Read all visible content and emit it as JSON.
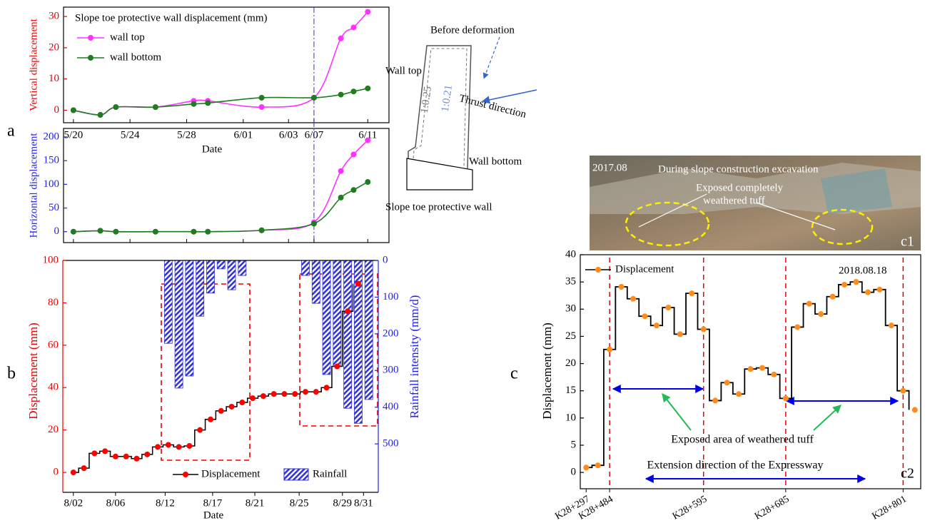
{
  "panel_labels": [
    "a",
    "b",
    "c"
  ],
  "diagram": {
    "before": "Before deformation",
    "wall_top": "Wall top",
    "ratio_before": "1:0.25",
    "ratio_after": "1:0.21",
    "thrust": "Thrust direction",
    "wall_bottom": "Wall bottom",
    "caption": "Slope toe protective wall"
  },
  "photo": {
    "date": "2017.08",
    "title": "During slope construction excavation",
    "note_1": "Exposed completely",
    "note_2": "weathered tuff",
    "tag": "c1"
  },
  "chart_data": [
    {
      "type": "line",
      "title": "Slope toe protective wall displacement (mm)",
      "ylabel": "Vertical displacement",
      "xlabel": "Date",
      "x": [
        0,
        1.9,
        3,
        5.8,
        8.5,
        9.5,
        13.3,
        17,
        18.9,
        19.8,
        20.8
      ],
      "xlim": [
        -0.7,
        22.3
      ],
      "xticks": [
        {
          "value": 0,
          "label": "5/20"
        },
        {
          "value": 4,
          "label": "5/24"
        },
        {
          "value": 8,
          "label": "5/28"
        },
        {
          "value": 12,
          "label": "6/01"
        },
        {
          "value": 15.2,
          "label": "6/03"
        },
        {
          "value": 17,
          "label": "6/07"
        },
        {
          "value": 20.8,
          "label": "6/11"
        }
      ],
      "ylim": [
        -4,
        33
      ],
      "yticks": [
        0,
        10,
        20,
        30
      ],
      "series": [
        {
          "name": "wall top",
          "color": "#ff33ff",
          "values": [
            0,
            -1.5,
            1,
            1,
            3,
            3,
            1,
            4,
            23,
            26.5,
            31.5
          ]
        },
        {
          "name": "wall bottom",
          "color": "#1e7d1e",
          "values": [
            0,
            -1.5,
            1,
            1,
            2,
            2.3,
            4,
            4,
            5,
            6,
            7
          ]
        }
      ]
    },
    {
      "type": "line",
      "ylabel": "Horizontal displacement",
      "ylim": [
        -23,
        218
      ],
      "yticks": [
        0,
        50,
        100,
        150,
        200
      ],
      "series": [
        {
          "color": "#ff33ff",
          "values": [
            0,
            2,
            0,
            0,
            0,
            0,
            3,
            20,
            128,
            163,
            193
          ]
        },
        {
          "color": "#1e7d1e",
          "values": [
            0,
            2,
            0,
            0,
            0,
            0,
            3,
            17,
            72,
            88,
            105
          ]
        }
      ]
    },
    {
      "type": "step-bar",
      "xlabel": "Date",
      "ylabel": "Displacement (mm)",
      "y2label": "Rainfall intensity (mm/d)",
      "xlim": [
        -1,
        28.9
      ],
      "xticks": [
        {
          "value": 0,
          "label": "8/02"
        },
        {
          "value": 4,
          "label": "8/06"
        },
        {
          "value": 8.7,
          "label": "8/12"
        },
        {
          "value": 13.2,
          "label": "8/17"
        },
        {
          "value": 17.2,
          "label": "8/21"
        },
        {
          "value": 21.4,
          "label": "8/25"
        },
        {
          "value": 25.5,
          "label": "8/29"
        },
        {
          "value": 27.5,
          "label": "8/31"
        }
      ],
      "ylim": [
        -9.4,
        100
      ],
      "yticks": [
        0,
        20,
        40,
        60,
        80,
        100
      ],
      "y2lim": [
        0,
        632
      ],
      "y2ticks": [
        0,
        100,
        200,
        300,
        400,
        500
      ],
      "y2_inverted": true,
      "series": [
        {
          "name": "Displacement",
          "color": "#ff0000",
          "x": [
            0,
            1,
            2,
            3,
            4,
            5,
            6,
            7,
            8,
            9,
            10,
            11,
            12,
            13,
            14,
            15,
            16,
            17,
            18,
            19,
            20,
            21,
            22,
            23,
            24,
            25,
            26,
            27
          ],
          "values": [
            0,
            2,
            9,
            10,
            7.5,
            7.5,
            6.5,
            8.5,
            12,
            13,
            12,
            12.5,
            20,
            25,
            29,
            31,
            33,
            35,
            36,
            37,
            37,
            37,
            38,
            38,
            40,
            50,
            76,
            89
          ]
        },
        {
          "name": "Rainfall",
          "color": "#3333cc",
          "axis": "y2",
          "x": [
            9,
            10,
            11,
            12,
            13,
            14,
            15,
            16,
            22,
            23,
            24,
            25,
            26,
            27,
            28
          ],
          "values": [
            226,
            348,
            315,
            152,
            89,
            23,
            80,
            41,
            41,
            117,
            311,
            286,
            403,
            444,
            379
          ]
        }
      ]
    },
    {
      "type": "step",
      "ylabel": "Displacement (mm)",
      "categories": [
        "K28+297",
        null,
        "K28+484",
        null,
        null,
        null,
        null,
        null,
        null,
        null,
        "K28+595",
        null,
        null,
        null,
        null,
        null,
        null,
        "K28+685",
        null,
        null,
        null,
        null,
        null,
        null,
        null,
        null,
        null,
        "K28+801",
        null
      ],
      "ylim": [
        -3,
        40
      ],
      "yticks": [
        0,
        5,
        10,
        15,
        20,
        25,
        30,
        35,
        40
      ],
      "series": [
        {
          "name": "Displacement",
          "color": "#ff8c1a",
          "values": [
            0.9,
            1.3,
            22.6,
            34.1,
            31.9,
            28.7,
            27,
            30.3,
            25.4,
            32.9,
            26.3,
            13.2,
            16.5,
            14.4,
            19,
            19.2,
            18,
            13.6,
            26.7,
            31,
            29.1,
            32.3,
            34.5,
            35,
            33.1,
            33.6,
            27,
            15,
            11.5
          ]
        }
      ],
      "annotations": [
        "2018.08.18",
        "Exposed area of weathered tuff",
        "Extension direction of the Expressway",
        "c2"
      ]
    }
  ]
}
